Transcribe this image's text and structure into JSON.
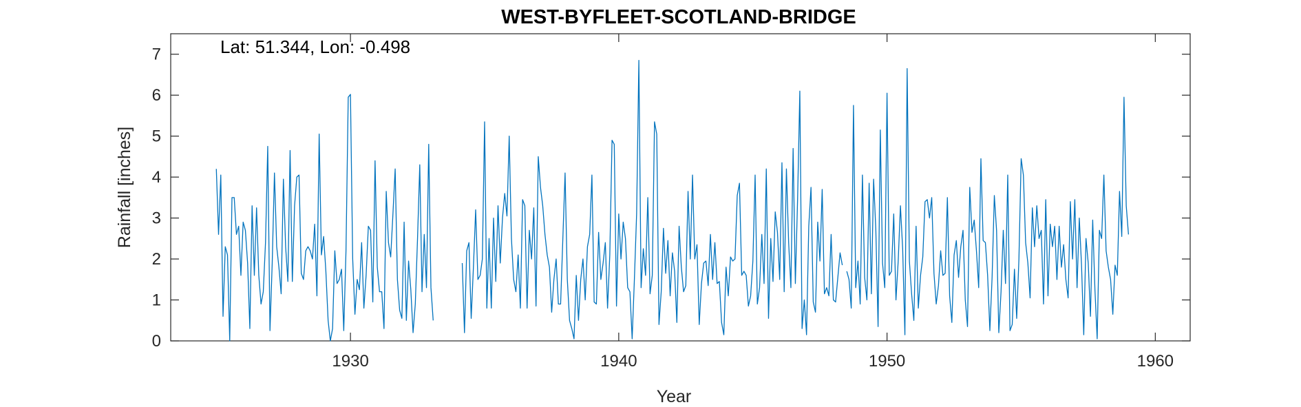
{
  "chart_data": {
    "type": "line",
    "title": "WEST-BYFLEET-SCOTLAND-BRIDGE",
    "annotation": "Lat: 51.344, Lon: -0.498",
    "xlabel": "Year",
    "ylabel": "Rainfall [inches]",
    "xlim": [
      1923.3,
      1961.3
    ],
    "ylim": [
      0,
      7.5
    ],
    "xticks": [
      1930,
      1940,
      1950,
      1960
    ],
    "yticks": [
      0,
      1,
      2,
      3,
      4,
      5,
      6,
      7
    ],
    "grid": false,
    "line_color": "#0072BD",
    "x_start": 1925.0,
    "x_step": 0.0833333,
    "series": [
      {
        "values": [
          4.2,
          2.6,
          4.05,
          0.6,
          2.3,
          2.1,
          0.0,
          3.5,
          3.5,
          2.6,
          2.8,
          1.6,
          2.9,
          2.7,
          1.9,
          0.3,
          3.3,
          1.6,
          3.25,
          1.6,
          0.9,
          1.2,
          2.4,
          4.75,
          0.25,
          1.9,
          4.1,
          2.3,
          1.8,
          1.15,
          3.95,
          2.3,
          1.45,
          4.65,
          1.45,
          3.3,
          4.0,
          4.05,
          1.65,
          1.5,
          2.2,
          2.3,
          2.2,
          2.0,
          2.85,
          1.1,
          5.05,
          2.1,
          2.55,
          1.7,
          0.5,
          0.0,
          0.3,
          2.2,
          1.4,
          1.5,
          1.75,
          0.25,
          2.2,
          5.95,
          6.02,
          2.0,
          0.65,
          1.5,
          1.25,
          2.4,
          0.8,
          1.6,
          2.8,
          2.7,
          0.95,
          4.4,
          1.8,
          1.2,
          1.2,
          0.3,
          3.65,
          2.4,
          2.05,
          3.1,
          4.2,
          1.5,
          0.75,
          0.55,
          2.9,
          0.5,
          1.95,
          1.25,
          0.2,
          0.9,
          2.5,
          4.3,
          1.2,
          2.6,
          1.3,
          4.8,
          1.3,
          0.5,
          null,
          null,
          null,
          null,
          null,
          null,
          null,
          null,
          null,
          null,
          null,
          null,
          1.9,
          0.2,
          2.2,
          2.4,
          0.55,
          1.8,
          3.2,
          1.5,
          1.6,
          2.0,
          5.35,
          0.8,
          2.5,
          0.8,
          3.0,
          1.45,
          3.3,
          1.9,
          3.0,
          3.6,
          3.05,
          5.0,
          2.5,
          1.5,
          1.2,
          2.1,
          0.8,
          3.45,
          3.3,
          0.8,
          2.7,
          2.0,
          3.25,
          0.85,
          4.5,
          3.75,
          3.3,
          2.6,
          2.1,
          1.8,
          0.7,
          1.5,
          2.0,
          0.9,
          0.9,
          2.5,
          4.1,
          1.5,
          0.5,
          0.3,
          0.05,
          1.6,
          0.5,
          1.5,
          2.0,
          1.0,
          2.3,
          2.6,
          4.05,
          0.95,
          0.9,
          2.65,
          1.5,
          1.9,
          2.4,
          0.8,
          2.1,
          4.9,
          4.8,
          0.85,
          3.1,
          2.0,
          2.9,
          2.5,
          1.3,
          1.2,
          0.05,
          1.5,
          3.1,
          6.85,
          1.3,
          2.25,
          1.6,
          3.5,
          1.15,
          1.6,
          5.35,
          5.05,
          0.4,
          1.2,
          2.75,
          1.65,
          2.45,
          1.1,
          2.15,
          1.7,
          0.45,
          2.8,
          1.8,
          1.2,
          1.35,
          3.65,
          2.0,
          4.05,
          2.0,
          2.35,
          0.4,
          1.4,
          1.9,
          1.95,
          1.35,
          2.6,
          1.5,
          2.4,
          1.4,
          1.45,
          0.45,
          0.15,
          1.8,
          1.1,
          2.05,
          1.95,
          2.0,
          3.55,
          3.85,
          1.6,
          1.7,
          1.6,
          0.85,
          1.1,
          1.95,
          4.05,
          0.9,
          1.3,
          2.6,
          1.4,
          4.2,
          0.55,
          2.5,
          1.45,
          3.15,
          2.65,
          1.5,
          4.35,
          1.2,
          4.2,
          2.4,
          1.3,
          4.7,
          1.4,
          3.45,
          6.1,
          0.3,
          1.0,
          0.15,
          2.8,
          3.75,
          0.95,
          0.7,
          2.9,
          1.95,
          3.7,
          1.15,
          1.3,
          1.1,
          2.6,
          1.0,
          0.95,
          1.55,
          2.15,
          1.85,
          null,
          1.7,
          1.5,
          0.8,
          5.75,
          1.3,
          1.95,
          0.9,
          4.05,
          1.55,
          1.0,
          3.85,
          1.15,
          3.95,
          2.7,
          0.35,
          5.15,
          1.9,
          1.3,
          6.05,
          1.6,
          1.7,
          3.1,
          1.0,
          1.95,
          3.3,
          2.25,
          0.15,
          6.65,
          1.95,
          1.15,
          0.5,
          2.8,
          0.8,
          1.6,
          2.05,
          3.4,
          3.45,
          3.0,
          3.5,
          1.65,
          0.9,
          1.35,
          2.2,
          1.6,
          1.65,
          3.5,
          1.1,
          0.45,
          2.1,
          2.45,
          1.55,
          2.3,
          2.7,
          1.0,
          0.35,
          3.75,
          2.65,
          2.95,
          2.2,
          1.3,
          4.45,
          2.45,
          2.4,
          1.6,
          0.25,
          1.55,
          3.55,
          2.7,
          0.2,
          1.2,
          2.7,
          1.4,
          4.05,
          0.25,
          0.4,
          1.75,
          0.55,
          2.0,
          4.45,
          4.05,
          2.4,
          1.9,
          1.05,
          3.25,
          2.3,
          3.3,
          2.5,
          2.7,
          0.9,
          3.45,
          1.1,
          2.85,
          2.3,
          2.8,
          1.5,
          2.8,
          1.8,
          2.35,
          1.5,
          1.05,
          3.4,
          2.0,
          3.45,
          1.3,
          3.0,
          1.85,
          0.15,
          2.5,
          1.9,
          0.6,
          2.95,
          1.25,
          0.05,
          2.7,
          2.5,
          4.05,
          2.2,
          1.8,
          1.5,
          0.65,
          1.85,
          1.6,
          3.65,
          2.55,
          5.95,
          3.3,
          2.6
        ]
      }
    ]
  }
}
